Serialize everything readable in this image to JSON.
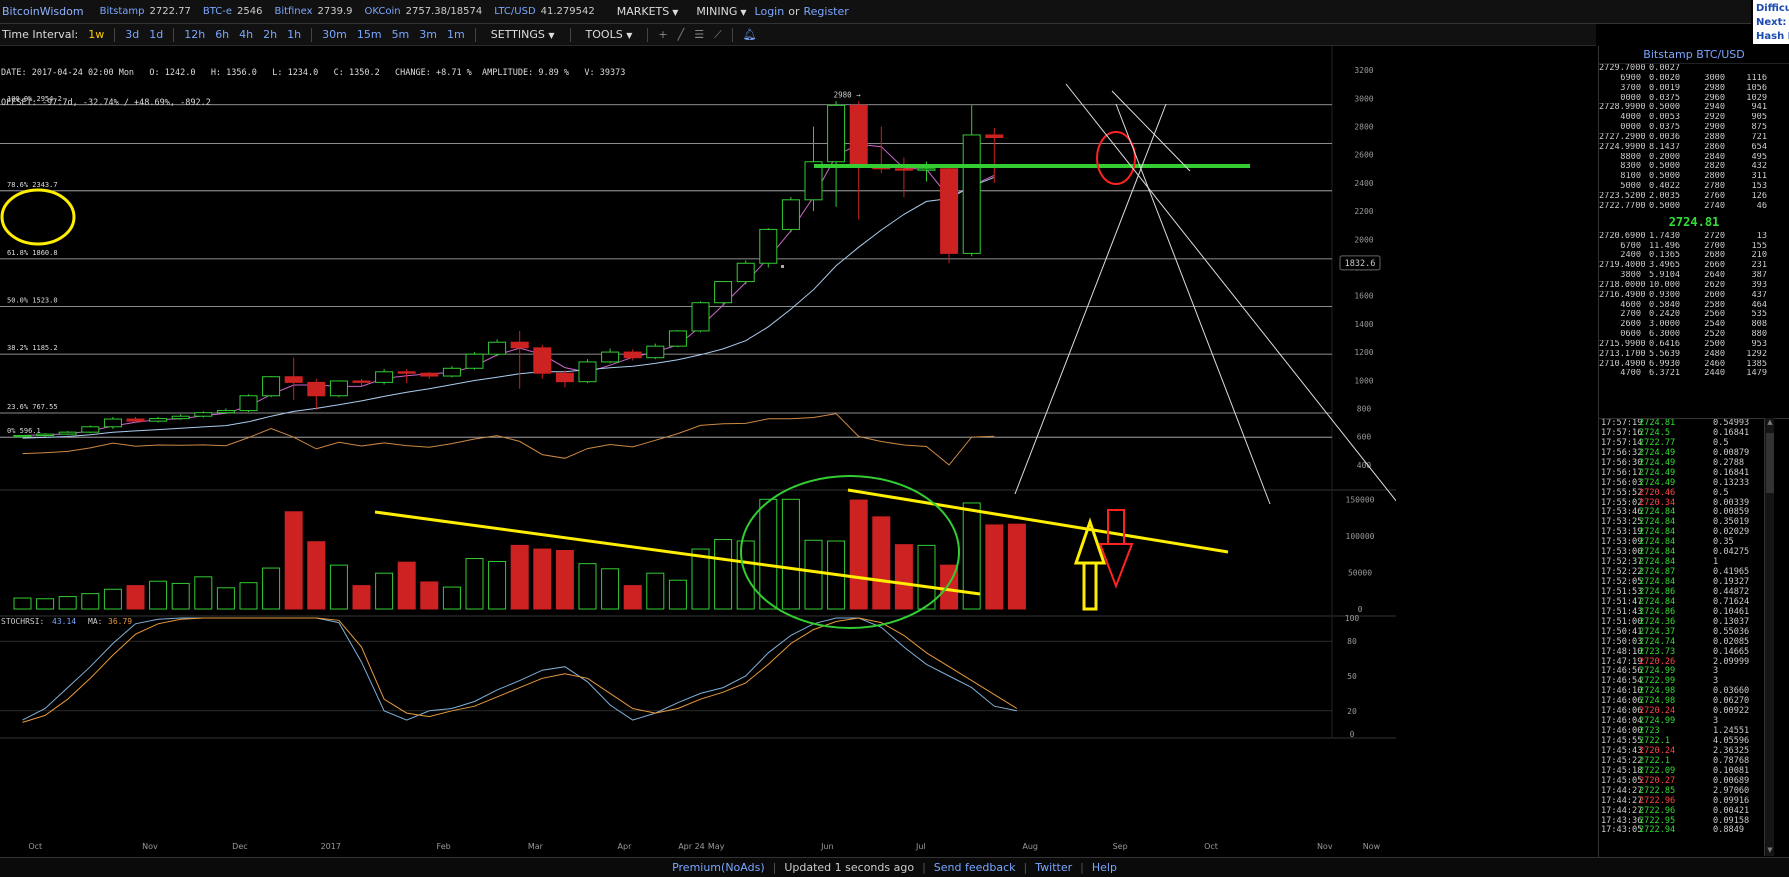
{
  "topbar": {
    "logo": "BitcoinWisdom",
    "markets": [
      {
        "name": "Bitstamp",
        "price": "2722.77"
      },
      {
        "name": "BTC-e",
        "price": "2546"
      },
      {
        "name": "Bitfinex",
        "price": "2739.9"
      },
      {
        "name": "OKCoin",
        "price": "2757.38/18574"
      },
      {
        "name": "LTC/USD",
        "price": "41.279542"
      }
    ],
    "menu_markets": "MARKETS",
    "menu_mining": "MINING",
    "login": "Login",
    "or": "or",
    "register": "Register",
    "difficulty_lines": [
      "Difficu",
      "Next:",
      "Hash R"
    ]
  },
  "toolbar": {
    "label": "Time Interval:",
    "intervals": [
      "1w",
      "3d",
      "1d",
      "12h",
      "6h",
      "4h",
      "2h",
      "1h",
      "30m",
      "15m",
      "5m",
      "3m",
      "1m"
    ],
    "active_interval": "1w",
    "settings": "SETTINGS",
    "tools": "TOOLS"
  },
  "info": {
    "line1": "DATE: 2017-04-24 02:00 Mon   O: 1242.0   H: 1356.0   L: 1234.0   C: 1350.2   CHANGE: +8.71 %  AMPLITUDE: 9.89 %   V: 39373",
    "line2": "OFFSET: -97.7d, -32.74% / +48.69%, -892.2"
  },
  "chart_data": {
    "type": "candlestick",
    "interval": "1w",
    "price_axis": {
      "ticks": [
        400,
        600,
        800,
        1000,
        1200,
        1400,
        1600,
        1800,
        2000,
        2200,
        2400,
        2600,
        2800,
        3000,
        3200
      ],
      "range": [
        250,
        3300
      ]
    },
    "current_price_tag": "1832.6",
    "peak_label": "2980",
    "fib_levels": [
      {
        "label": "100.0% 2954.2",
        "value": 2954.2
      },
      {
        "label": "78.6% 2343.7",
        "value": 2343.7
      },
      {
        "label": "61.8% 1860.8",
        "value": 1860.8
      },
      {
        "label": "50.0% 1523.0",
        "value": 1523.0
      },
      {
        "label": "38.2% 1185.2",
        "value": 1185.2
      },
      {
        "label": "23.6% 767.55",
        "value": 767.55
      },
      {
        "label": "0% 596.1",
        "value": 596.1
      }
    ],
    "candles": [
      {
        "o": 600,
        "h": 612,
        "l": 592,
        "c": 608
      },
      {
        "o": 608,
        "h": 625,
        "l": 600,
        "c": 618
      },
      {
        "o": 618,
        "h": 640,
        "l": 610,
        "c": 632
      },
      {
        "o": 632,
        "h": 680,
        "l": 625,
        "c": 670
      },
      {
        "o": 670,
        "h": 740,
        "l": 655,
        "c": 725
      },
      {
        "o": 725,
        "h": 740,
        "l": 695,
        "c": 710
      },
      {
        "o": 710,
        "h": 740,
        "l": 700,
        "c": 728
      },
      {
        "o": 728,
        "h": 760,
        "l": 720,
        "c": 745
      },
      {
        "o": 745,
        "h": 780,
        "l": 735,
        "c": 770
      },
      {
        "o": 770,
        "h": 800,
        "l": 760,
        "c": 785
      },
      {
        "o": 785,
        "h": 900,
        "l": 775,
        "c": 890
      },
      {
        "o": 890,
        "h": 1030,
        "l": 880,
        "c": 1025
      },
      {
        "o": 1025,
        "h": 1160,
        "l": 860,
        "c": 985
      },
      {
        "o": 985,
        "h": 1010,
        "l": 790,
        "c": 890
      },
      {
        "o": 890,
        "h": 1000,
        "l": 880,
        "c": 995
      },
      {
        "o": 995,
        "h": 1010,
        "l": 960,
        "c": 985
      },
      {
        "o": 985,
        "h": 1080,
        "l": 970,
        "c": 1060
      },
      {
        "o": 1060,
        "h": 1080,
        "l": 980,
        "c": 1050
      },
      {
        "o": 1050,
        "h": 1060,
        "l": 1010,
        "c": 1030
      },
      {
        "o": 1030,
        "h": 1100,
        "l": 1020,
        "c": 1085
      },
      {
        "o": 1085,
        "h": 1200,
        "l": 1075,
        "c": 1185
      },
      {
        "o": 1185,
        "h": 1290,
        "l": 1170,
        "c": 1270
      },
      {
        "o": 1270,
        "h": 1350,
        "l": 940,
        "c": 1230
      },
      {
        "o": 1230,
        "h": 1250,
        "l": 1010,
        "c": 1050
      },
      {
        "o": 1050,
        "h": 1070,
        "l": 950,
        "c": 990
      },
      {
        "o": 990,
        "h": 1150,
        "l": 980,
        "c": 1130
      },
      {
        "o": 1130,
        "h": 1225,
        "l": 1120,
        "c": 1200
      },
      {
        "o": 1200,
        "h": 1220,
        "l": 1140,
        "c": 1160
      },
      {
        "o": 1160,
        "h": 1260,
        "l": 1150,
        "c": 1242
      },
      {
        "o": 1242,
        "h": 1356,
        "l": 1234,
        "c": 1350
      },
      {
        "o": 1350,
        "h": 1560,
        "l": 1340,
        "c": 1550
      },
      {
        "o": 1550,
        "h": 1700,
        "l": 1540,
        "c": 1700
      },
      {
        "o": 1700,
        "h": 1850,
        "l": 1680,
        "c": 1830
      },
      {
        "o": 1830,
        "h": 2080,
        "l": 1800,
        "c": 2070
      },
      {
        "o": 2070,
        "h": 2300,
        "l": 2050,
        "c": 2280
      },
      {
        "o": 2280,
        "h": 2800,
        "l": 2200,
        "c": 2550
      },
      {
        "o": 2550,
        "h": 2980,
        "l": 2230,
        "c": 2950
      },
      {
        "o": 2950,
        "h": 2980,
        "l": 2140,
        "c": 2520
      },
      {
        "o": 2520,
        "h": 2800,
        "l": 2470,
        "c": 2500
      },
      {
        "o": 2500,
        "h": 2580,
        "l": 2300,
        "c": 2490
      },
      {
        "o": 2490,
        "h": 2550,
        "l": 2410,
        "c": 2500
      },
      {
        "o": 2500,
        "h": 2530,
        "l": 1830,
        "c": 1900
      },
      {
        "o": 1900,
        "h": 2950,
        "l": 1880,
        "c": 2740
      },
      {
        "o": 2740,
        "h": 2790,
        "l": 2400,
        "c": 2722
      }
    ],
    "volume_axis": {
      "ticks": [
        0,
        50000,
        100000,
        150000
      ],
      "range": [
        0,
        160000
      ]
    },
    "volumes": [
      15000,
      14000,
      17000,
      21000,
      27000,
      32000,
      38000,
      35000,
      44000,
      29000,
      36000,
      56000,
      133000,
      92000,
      60000,
      32000,
      49000,
      64000,
      37000,
      30000,
      69000,
      65000,
      87000,
      82000,
      80000,
      62000,
      55000,
      32000,
      49000,
      39373,
      82000,
      95000,
      93000,
      150000,
      150000,
      94000,
      93000,
      149000,
      126000,
      88000,
      87000,
      60000,
      145000,
      115000,
      116000
    ],
    "stoch_rsi": {
      "label": "STOCHRSI:",
      "value": "43.14",
      "ma_label": "MA:",
      "ma_value": "36.79",
      "ticks": [
        0,
        20,
        50,
        80,
        100
      ]
    },
    "x_labels": [
      "Oct",
      "Nov",
      "Dec",
      "2017",
      "Feb",
      "Mar",
      "Apr",
      "Apr 24",
      "May",
      "Jun",
      "Jul",
      "Aug",
      "Sep",
      "Oct",
      "Nov",
      "Now"
    ]
  },
  "orderbook": {
    "title": "Bitstamp BTC/USD",
    "asks": [
      [
        "2729.7000",
        "0.0027",
        "",
        ""
      ],
      [
        "6900",
        "0.0020",
        "3000",
        "1116"
      ],
      [
        "3700",
        "0.0019",
        "2980",
        "1056"
      ],
      [
        "0000",
        "0.0375",
        "2960",
        "1029"
      ],
      [
        "2728.9900",
        "0.5000",
        "2940",
        "941"
      ],
      [
        "4000",
        "0.0053",
        "2920",
        "905"
      ],
      [
        "0000",
        "0.0375",
        "2900",
        "875"
      ],
      [
        "2727.2900",
        "0.0036",
        "2880",
        "721"
      ],
      [
        "2724.9900",
        "8.1437",
        "2860",
        "654"
      ],
      [
        "8800",
        "0.2000",
        "2840",
        "495"
      ],
      [
        "8300",
        "0.5000",
        "2820",
        "432"
      ],
      [
        "8100",
        "0.5000",
        "2800",
        "311"
      ],
      [
        "5000",
        "0.4022",
        "2780",
        "153"
      ],
      [
        "2723.5200",
        "2.0035",
        "2760",
        "126"
      ],
      [
        "2722.7700",
        "0.5000",
        "2740",
        "46"
      ]
    ],
    "mid_price": "2724.81",
    "bids": [
      [
        "2720.6900",
        "1.7430",
        "2720",
        "13"
      ],
      [
        "6700",
        "11.496",
        "2700",
        "155"
      ],
      [
        "2400",
        "0.1365",
        "2680",
        "210"
      ],
      [
        "2719.4000",
        "3.4965",
        "2660",
        "231"
      ],
      [
        "3800",
        "5.9104",
        "2640",
        "387"
      ],
      [
        "2718.0000",
        "10.000",
        "2620",
        "393"
      ],
      [
        "2716.4900",
        "0.9300",
        "2600",
        "437"
      ],
      [
        "4600",
        "0.5840",
        "2580",
        "464"
      ],
      [
        "2700",
        "0.2420",
        "2560",
        "535"
      ],
      [
        "2600",
        "3.0000",
        "2540",
        "808"
      ],
      [
        "0600",
        "6.3000",
        "2520",
        "880"
      ],
      [
        "2715.9900",
        "0.6416",
        "2500",
        "953"
      ],
      [
        "2713.1700",
        "5.5639",
        "2480",
        "1292"
      ],
      [
        "2710.4900",
        "6.9930",
        "2460",
        "1385"
      ],
      [
        "4700",
        "6.3721",
        "2440",
        "1479"
      ]
    ]
  },
  "trades": [
    [
      "17:57:19",
      "2724.81",
      "0.54993",
      "up"
    ],
    [
      "17:57:16",
      "2724.5",
      "0.16841",
      "up"
    ],
    [
      "17:57:14",
      "2722.77",
      "0.5",
      "up"
    ],
    [
      "17:56:32",
      "2724.49",
      "0.00879",
      "up"
    ],
    [
      "17:56:30",
      "2724.49",
      "0.2788",
      "up"
    ],
    [
      "17:56:17",
      "2724.49",
      "0.16841",
      "up"
    ],
    [
      "17:56:03",
      "2724.49",
      "0.13233",
      "up"
    ],
    [
      "17:55:52",
      "2720.46",
      "0.5",
      "dn"
    ],
    [
      "17:55:02",
      "2720.34",
      "0.00339",
      "dn"
    ],
    [
      "17:53:46",
      "2724.84",
      "0.00859",
      "up"
    ],
    [
      "17:53:25",
      "2724.84",
      "0.35019",
      "up"
    ],
    [
      "17:53:19",
      "2724.84",
      "0.02029",
      "up"
    ],
    [
      "17:53:09",
      "2724.84",
      "0.35",
      "up"
    ],
    [
      "17:53:00",
      "2724.84",
      "0.04275",
      "up"
    ],
    [
      "17:52:37",
      "2724.84",
      "1",
      "up"
    ],
    [
      "17:52:22",
      "2724.87",
      "0.41965",
      "up"
    ],
    [
      "17:52:05",
      "2724.84",
      "0.19327",
      "up"
    ],
    [
      "17:51:53",
      "2724.86",
      "0.44872",
      "up"
    ],
    [
      "17:51:47",
      "2724.84",
      "0.71624",
      "up"
    ],
    [
      "17:51:43",
      "2724.86",
      "0.10461",
      "up"
    ],
    [
      "17:51:00",
      "2724.36",
      "0.13037",
      "up"
    ],
    [
      "17:50:41",
      "2724.37",
      "0.55036",
      "up"
    ],
    [
      "17:50:03",
      "2724.74",
      "0.02085",
      "up"
    ],
    [
      "17:48:10",
      "2723.73",
      "0.14665",
      "up"
    ],
    [
      "17:47:19",
      "2720.26",
      "2.09999",
      "dn"
    ],
    [
      "17:46:56",
      "2724.99",
      "3",
      "up"
    ],
    [
      "17:46:54",
      "2722.99",
      "3",
      "up"
    ],
    [
      "17:46:10",
      "2724.98",
      "0.03660",
      "up"
    ],
    [
      "17:46:06",
      "2724.98",
      "0.06270",
      "up"
    ],
    [
      "17:46:06",
      "2720.24",
      "0.00922",
      "dn"
    ],
    [
      "17:46:04",
      "2724.99",
      "3",
      "up"
    ],
    [
      "17:46:00",
      "2723",
      "1.24551",
      "up"
    ],
    [
      "17:45:55",
      "2722.1",
      "4.05596",
      "up"
    ],
    [
      "17:45:43",
      "2720.24",
      "2.36325",
      "dn"
    ],
    [
      "17:45:22",
      "2722.1",
      "0.78768",
      "up"
    ],
    [
      "17:45:18",
      "2722.09",
      "0.10081",
      "up"
    ],
    [
      "17:45:05",
      "2720.27",
      "0.00689",
      "dn"
    ],
    [
      "17:44:27",
      "2722.85",
      "2.97060",
      "up"
    ],
    [
      "17:44:27",
      "2722.96",
      "0.09916",
      "dn"
    ],
    [
      "17:44:27",
      "2722.96",
      "0.00421",
      "up"
    ],
    [
      "17:43:36",
      "2722.95",
      "0.09158",
      "up"
    ],
    [
      "17:43:05",
      "2722.94",
      "0.8849",
      "up"
    ]
  ],
  "footer": {
    "premium": "Premium(NoAds)",
    "updated": "Updated 1 seconds ago",
    "feedback": "Send feedback",
    "twitter": "Twitter",
    "help": "Help"
  },
  "colors": {
    "up": "#33cc33",
    "down": "#cc2222",
    "ma_pink": "#cc66cc",
    "ma_blue": "#aaccee",
    "ma_orange": "#cc8844",
    "annot_green": "#33cc33",
    "annot_yellow": "#ffee00",
    "annot_red": "#ff2222"
  }
}
